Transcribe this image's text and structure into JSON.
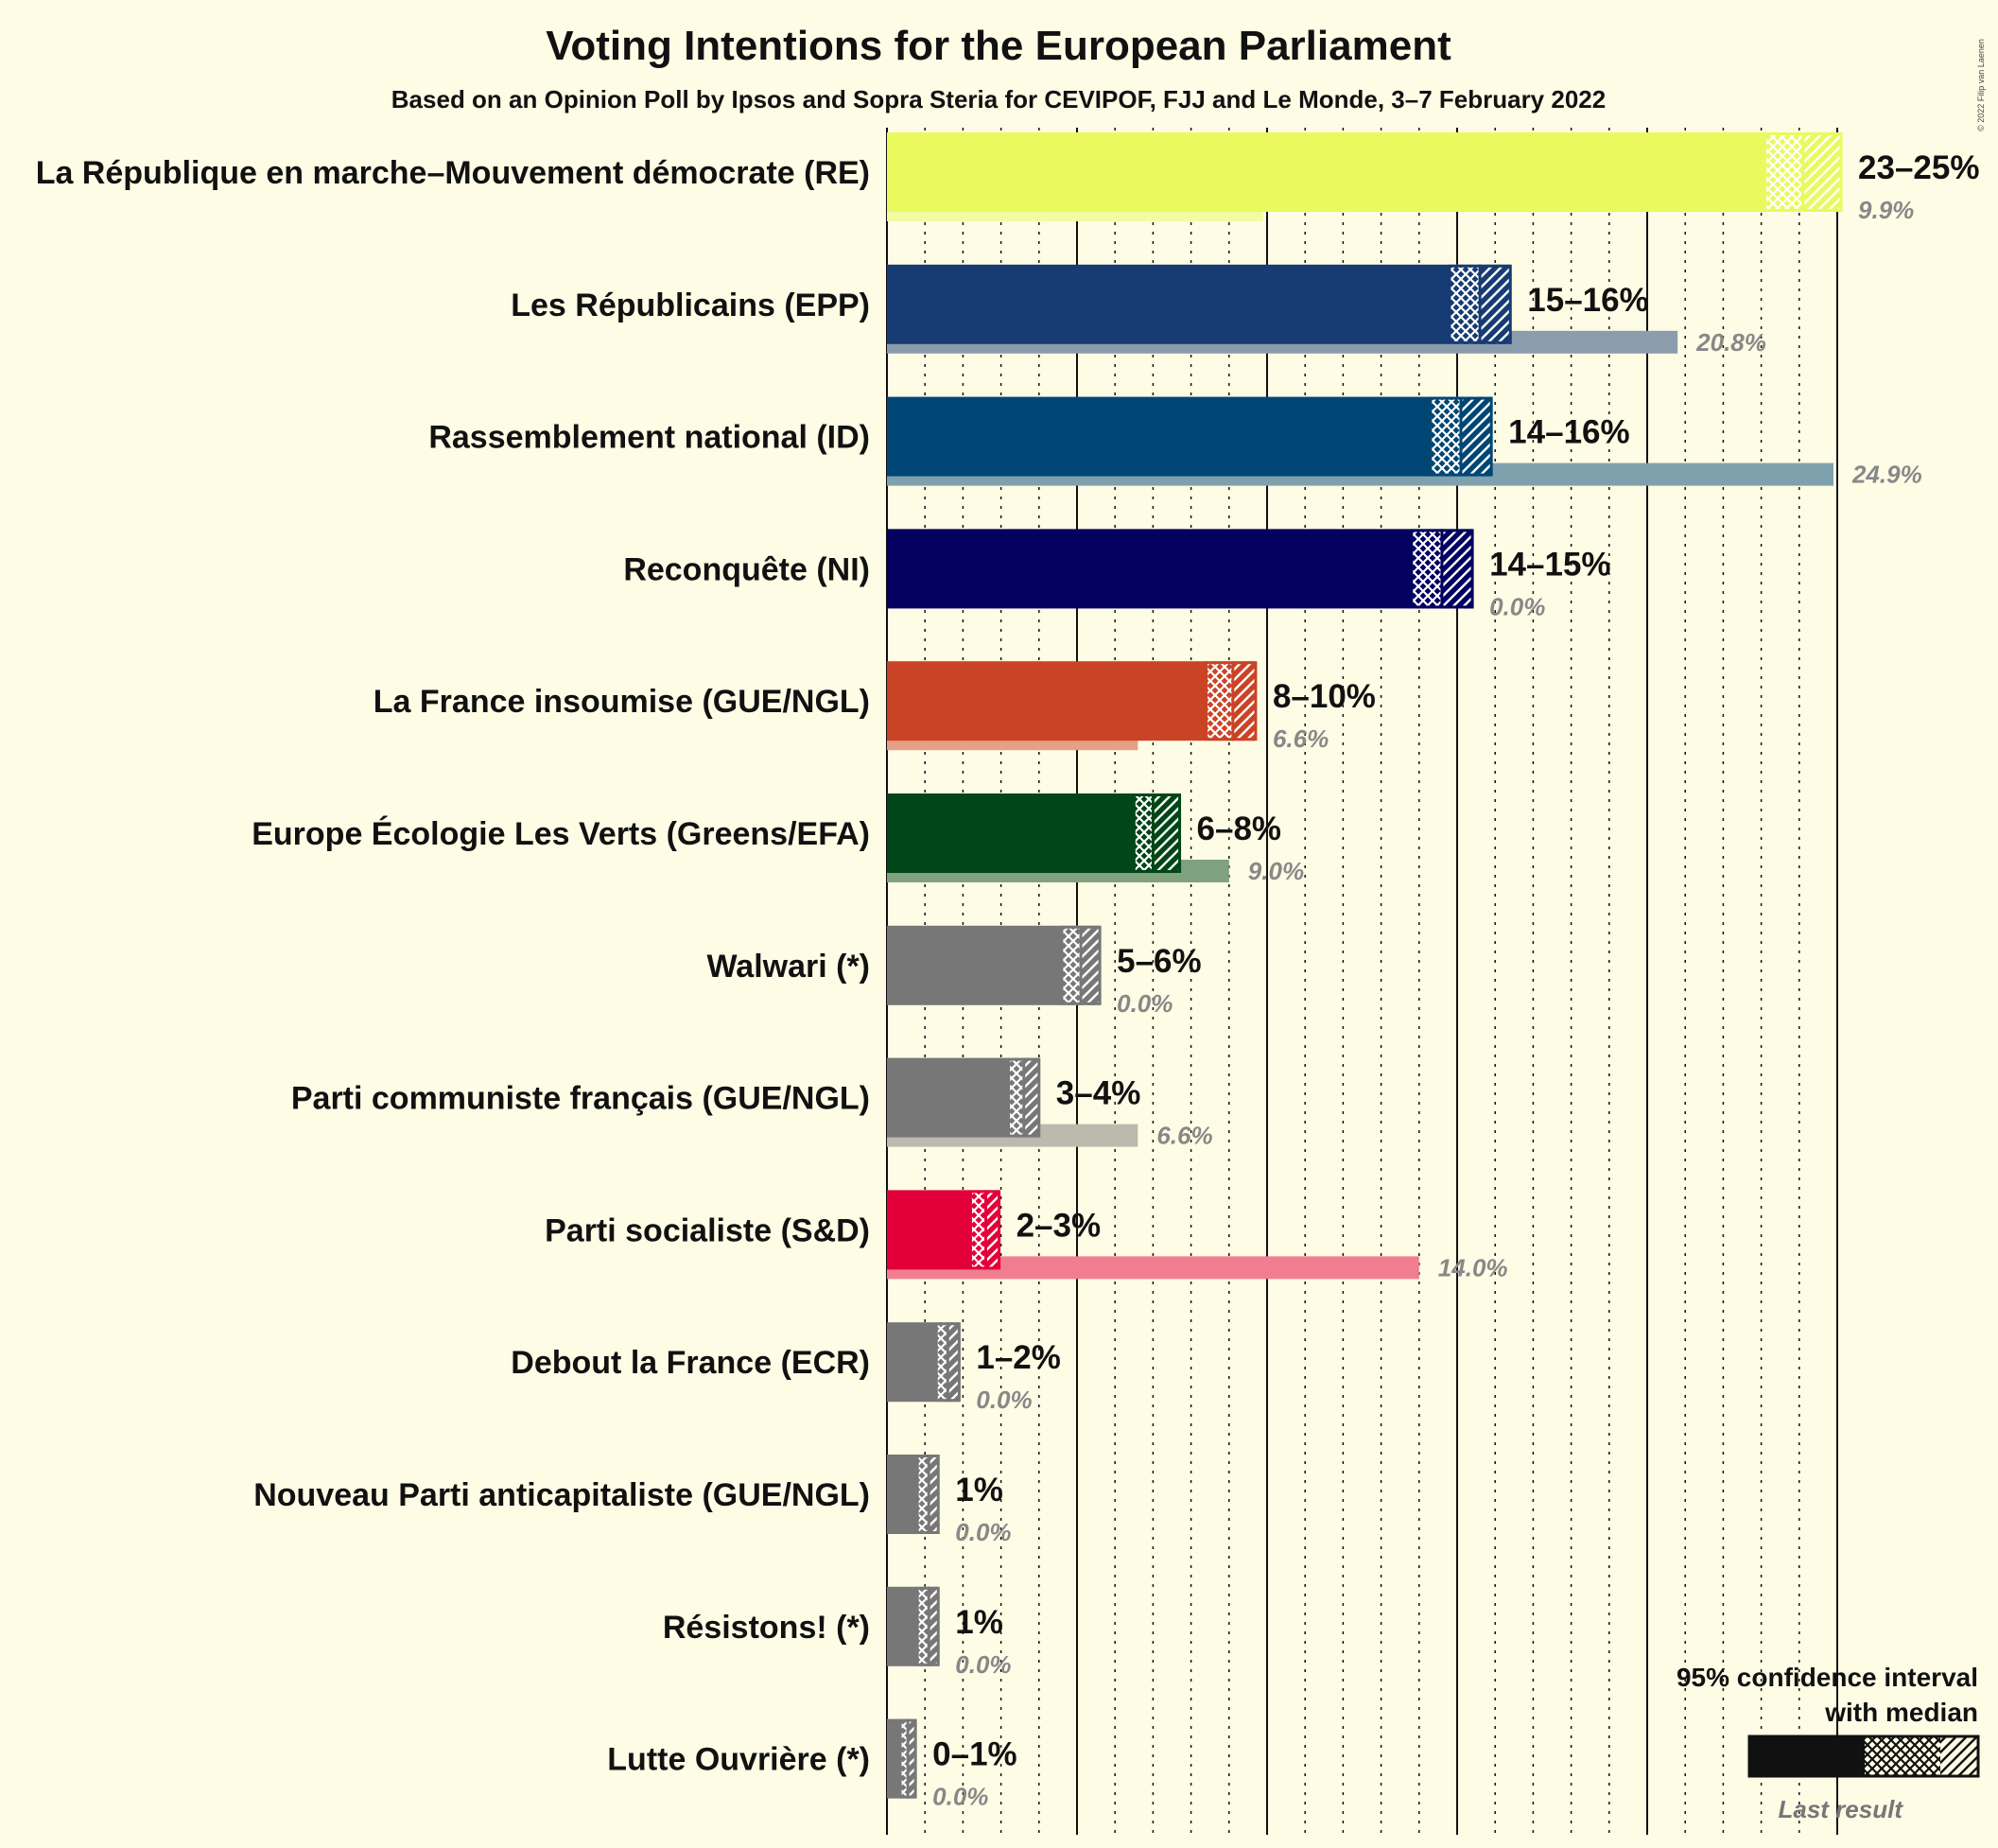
{
  "chart_data": {
    "type": "bar",
    "title": "Voting Intentions for the European Parliament",
    "subtitle": "Based on an Opinion Poll by Ipsos and Sopra Steria for CEVIPOF, FJJ and Le Monde, 3–7 February 2022",
    "copyright": "© 2022 Filip van Laenen",
    "xlim": [
      0,
      25
    ],
    "grid": true,
    "parties": [
      {
        "name": "La République en marche–Mouvement démocrate (RE)",
        "color": "#eaf95e",
        "low": 23.1,
        "median": 24.1,
        "high": 25.1,
        "last": 9.9,
        "range_label": "23–25%",
        "last_label": "9.9%"
      },
      {
        "name": "Les Républicains (EPP)",
        "color": "#173b73",
        "low": 14.8,
        "median": 15.6,
        "high": 16.4,
        "last": 20.8,
        "range_label": "15–16%",
        "last_label": "20.8%"
      },
      {
        "name": "Rassemblement national (ID)",
        "color": "#004674",
        "low": 14.3,
        "median": 15.1,
        "high": 15.9,
        "last": 24.9,
        "range_label": "14–16%",
        "last_label": "24.9%"
      },
      {
        "name": "Reconquête (NI)",
        "color": "#030060",
        "low": 13.8,
        "median": 14.6,
        "high": 15.4,
        "last": 0.0,
        "range_label": "14–15%",
        "last_label": "0.0%"
      },
      {
        "name": "La France insoumise (GUE/NGL)",
        "color": "#cb4325",
        "low": 8.4,
        "median": 9.1,
        "high": 9.7,
        "last": 6.6,
        "range_label": "8–10%",
        "last_label": "6.6%"
      },
      {
        "name": "Europe Écologie Les Verts (Greens/EFA)",
        "color": "#004616",
        "low": 6.5,
        "median": 7.0,
        "high": 7.7,
        "last": 9.0,
        "range_label": "6–8%",
        "last_label": "9.0%"
      },
      {
        "name": "Walwari (*)",
        "color": "#777777",
        "low": 4.6,
        "median": 5.1,
        "high": 5.6,
        "last": 0.0,
        "range_label": "5–6%",
        "last_label": "0.0%"
      },
      {
        "name": "Parti communiste français (GUE/NGL)",
        "color": "#777777",
        "low": 3.2,
        "median": 3.6,
        "high": 4.0,
        "last": 6.6,
        "range_label": "3–4%",
        "last_label": "6.6%"
      },
      {
        "name": "Parti socialiste (S&D)",
        "color": "#e3003a",
        "low": 2.2,
        "median": 2.6,
        "high": 2.95,
        "last": 14.0,
        "range_label": "2–3%",
        "last_label": "14.0%"
      },
      {
        "name": "Debout la France (ECR)",
        "color": "#777777",
        "low": 1.3,
        "median": 1.6,
        "high": 1.9,
        "last": 0.0,
        "range_label": "1–2%",
        "last_label": "0.0%"
      },
      {
        "name": "Nouveau Parti anticapitaliste (GUE/NGL)",
        "color": "#777777",
        "low": 0.8,
        "median": 1.1,
        "high": 1.35,
        "last": 0.0,
        "range_label": "1%",
        "last_label": "0.0%"
      },
      {
        "name": "Résistons! (*)",
        "color": "#777777",
        "low": 0.8,
        "median": 1.1,
        "high": 1.35,
        "last": 0.0,
        "range_label": "1%",
        "last_label": "0.0%"
      },
      {
        "name": "Lutte Ouvrière (*)",
        "color": "#777777",
        "low": 0.35,
        "median": 0.55,
        "high": 0.75,
        "last": 0.0,
        "range_label": "0–1%",
        "last_label": "0.0%"
      }
    ]
  },
  "legend": {
    "line1": "95% confidence interval",
    "line2": "with median",
    "last_result": "Last result"
  }
}
